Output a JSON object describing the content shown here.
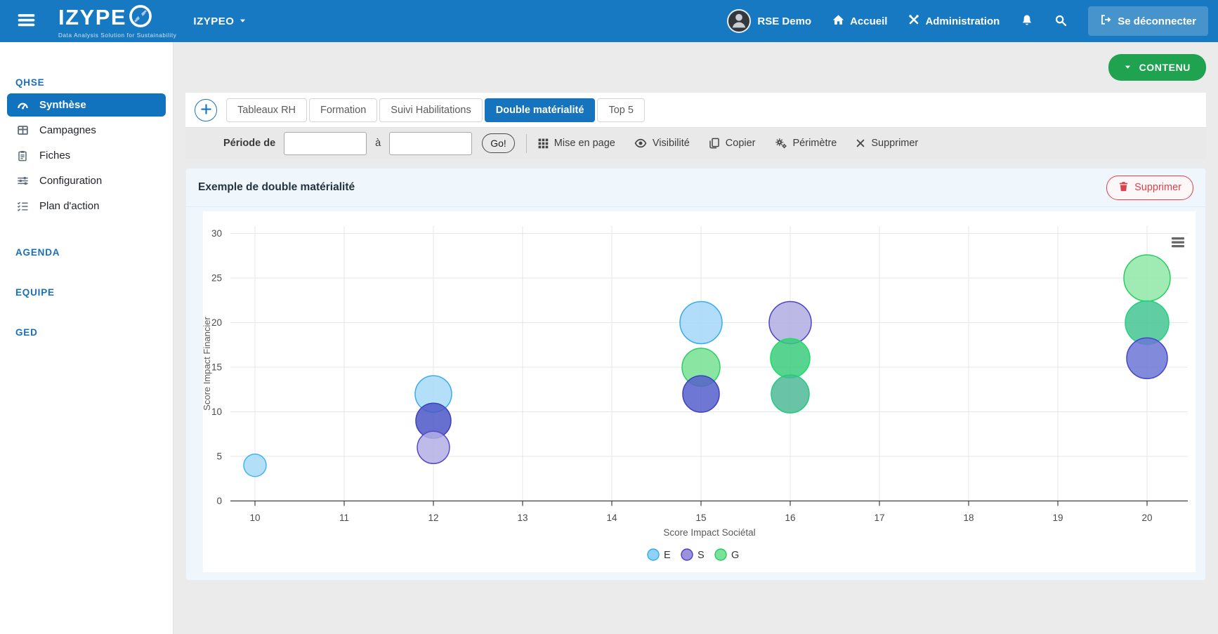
{
  "navbar": {
    "brand": "IZYPEO",
    "brand_text": "IZYPE",
    "tagline": "Data Analysis Solution for Sustainability",
    "workspace": "IZYPEO",
    "user": "RSE Demo",
    "nav_home": "Accueil",
    "nav_admin": "Administration",
    "logout": "Se déconnecter"
  },
  "sidebar": {
    "sections": [
      {
        "title": "QHSE",
        "items": [
          {
            "label": "Synthèse",
            "icon": "gauge-icon",
            "active": true
          },
          {
            "label": "Campagnes",
            "icon": "table-icon",
            "active": false
          },
          {
            "label": "Fiches",
            "icon": "clipboard-icon",
            "active": false
          },
          {
            "label": "Configuration",
            "icon": "sliders-icon",
            "active": false
          },
          {
            "label": "Plan d'action",
            "icon": "checklist-icon",
            "active": false
          }
        ]
      },
      {
        "title": "AGENDA",
        "items": []
      },
      {
        "title": "EQUIPE",
        "items": []
      },
      {
        "title": "GED",
        "items": []
      }
    ]
  },
  "content": {
    "contenu_button": "CONTENU",
    "tabs": [
      {
        "label": "Tableaux RH",
        "active": false
      },
      {
        "label": "Formation",
        "active": false
      },
      {
        "label": "Suivi Habilitations",
        "active": false
      },
      {
        "label": "Double matérialité",
        "active": true
      },
      {
        "label": "Top 5",
        "active": false
      }
    ],
    "toolbar": {
      "period_label": "Période de",
      "to_label": "à",
      "from_value": "",
      "to_value": "",
      "go_label": "Go!",
      "actions": [
        {
          "label": "Mise en page",
          "icon": "grid-icon"
        },
        {
          "label": "Visibilité",
          "icon": "eye-icon"
        },
        {
          "label": "Copier",
          "icon": "copy-icon"
        },
        {
          "label": "Périmètre",
          "icon": "gears-icon"
        },
        {
          "label": "Supprimer",
          "icon": "x-icon"
        }
      ]
    },
    "card": {
      "title": "Exemple de double matérialité",
      "delete_button": "Supprimer"
    }
  },
  "colors": {
    "navbar_bg": "#1779C1",
    "accent_blue": "#1673BE",
    "sidebar_active": "#1172BD",
    "contenu_green": "#1FA351",
    "delete_red": "#D9414E",
    "card_bg": "#EFF7FD"
  },
  "chart_data": {
    "type": "bubble",
    "title": "Exemple de double matérialité",
    "xlabel": "Score Impact Sociétal",
    "ylabel": "Score Impact Financier",
    "xlim": [
      9.7,
      20.45
    ],
    "ylim": [
      0,
      31
    ],
    "xticks": [
      10,
      11,
      12,
      13,
      14,
      15,
      16,
      17,
      18,
      19,
      20
    ],
    "yticks": [
      0,
      5,
      10,
      15,
      20,
      25,
      30
    ],
    "grid": true,
    "legend_position": "bottom",
    "menu_icon": "context-menu-icon",
    "legend": [
      {
        "label": "E",
        "fill": "#8FD1F8",
        "stroke": "#2FABF1"
      },
      {
        "label": "S",
        "fill": "#9A92DC",
        "stroke": "#4A40C4"
      },
      {
        "label": "G",
        "fill": "#78E399",
        "stroke": "#22CC60"
      }
    ],
    "series": [
      {
        "name": "E",
        "points": [
          {
            "x": 10,
            "y": 4
          },
          {
            "x": 12,
            "y": 12
          },
          {
            "x": 15,
            "y": 20
          }
        ]
      },
      {
        "name": "S",
        "points": [
          {
            "x": 12,
            "y": 9
          },
          {
            "x": 12,
            "y": 6
          },
          {
            "x": 15,
            "y": 12
          },
          {
            "x": 16,
            "y": 20
          },
          {
            "x": 20,
            "y": 16
          }
        ]
      },
      {
        "name": "G",
        "points": [
          {
            "x": 15,
            "y": 15
          },
          {
            "x": 16,
            "y": 16
          },
          {
            "x": 16,
            "y": 12
          },
          {
            "x": 20,
            "y": 25
          },
          {
            "x": 20,
            "y": 20
          }
        ]
      }
    ],
    "bubbles": [
      {
        "x": 10,
        "y": 4,
        "r": 16,
        "series": "E",
        "fill": "#A7D9F8",
        "stroke": "#41B3F0"
      },
      {
        "x": 12,
        "y": 12,
        "r": 26,
        "series": "E",
        "fill": "#A7D9F8",
        "stroke": "#38ACF0"
      },
      {
        "x": 12,
        "y": 9,
        "r": 25,
        "series": "S",
        "fill": "#4C57C7",
        "stroke": "#3C41BC"
      },
      {
        "x": 12,
        "y": 6,
        "r": 23,
        "series": "S",
        "fill": "#B3AFE4",
        "stroke": "#564CC9"
      },
      {
        "x": 15,
        "y": 20,
        "r": 30,
        "series": "E",
        "fill": "#A4D7F9",
        "stroke": "#38ACF0"
      },
      {
        "x": 15,
        "y": 15,
        "r": 27,
        "series": "G",
        "fill": "#76E093",
        "stroke": "#2BD063"
      },
      {
        "x": 15,
        "y": 12,
        "r": 26,
        "series": "S",
        "fill": "#5560CD",
        "stroke": "#3C41BC"
      },
      {
        "x": 16,
        "y": 20,
        "r": 30,
        "series": "S",
        "fill": "#B1ADE3",
        "stroke": "#4D43C6"
      },
      {
        "x": 16,
        "y": 16,
        "r": 28,
        "series": "G",
        "fill": "#3BCB7C",
        "stroke": "#17DF61"
      },
      {
        "x": 16,
        "y": 12,
        "r": 27,
        "series": "G",
        "fill": "#4FB897",
        "stroke": "#24CA7D"
      },
      {
        "x": 20,
        "y": 25,
        "r": 33,
        "series": "G",
        "fill": "#8FE7A6",
        "stroke": "#27CE5F"
      },
      {
        "x": 20,
        "y": 20,
        "r": 31,
        "series": "G",
        "fill": "#45C493",
        "stroke": "#1ED47E"
      },
      {
        "x": 20,
        "y": 16,
        "r": 29,
        "series": "S",
        "fill": "#6C75D6",
        "stroke": "#4347C8"
      }
    ]
  }
}
